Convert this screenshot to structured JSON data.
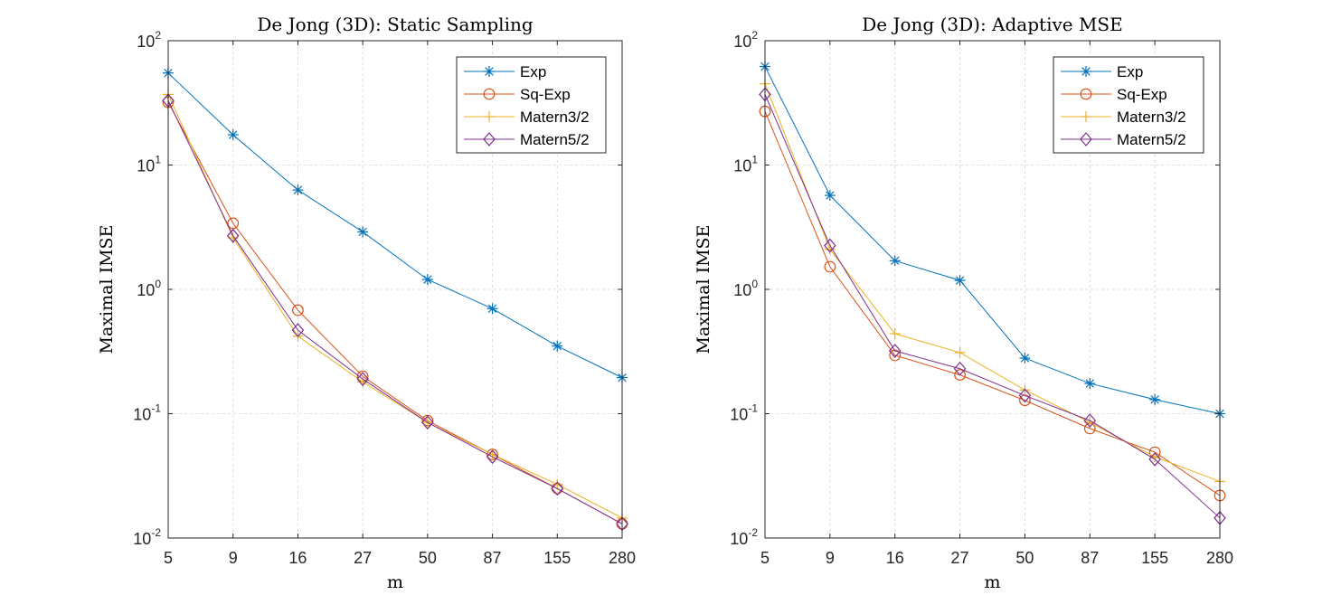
{
  "chart_data": [
    {
      "type": "line",
      "title": "De Jong (3D): Static Sampling",
      "xlabel": "m",
      "ylabel": "Maximal IMSE",
      "yscale": "log",
      "ylim": [
        0.01,
        100
      ],
      "grid": true,
      "legend_position": "top-right",
      "categories": [
        "5",
        "9",
        "16",
        "27",
        "50",
        "87",
        "155",
        "280"
      ],
      "yticks": [
        {
          "base": "10",
          "exp": "2",
          "value": 100
        },
        {
          "base": "10",
          "exp": "1",
          "value": 10
        },
        {
          "base": "10",
          "exp": "0",
          "value": 1
        },
        {
          "base": "10",
          "exp": "-1",
          "value": 0.1
        },
        {
          "base": "10",
          "exp": "-2",
          "value": 0.01
        }
      ],
      "series": [
        {
          "name": "Exp",
          "color": "#0072BD",
          "marker": "asterisk",
          "values": [
            55,
            17.5,
            6.3,
            2.9,
            1.2,
            0.7,
            0.35,
            0.195
          ]
        },
        {
          "name": "Sq-Exp",
          "color": "#D95319",
          "marker": "circle",
          "values": [
            32,
            3.4,
            0.68,
            0.2,
            0.088,
            0.047,
            0.025,
            0.013
          ]
        },
        {
          "name": "Matern3/2",
          "color": "#EDB120",
          "marker": "plus",
          "values": [
            37,
            2.6,
            0.42,
            0.18,
            0.085,
            0.047,
            0.027,
            0.0145
          ]
        },
        {
          "name": "Matern5/2",
          "color": "#7E2F8E",
          "marker": "diamond",
          "values": [
            33,
            2.7,
            0.47,
            0.19,
            0.085,
            0.045,
            0.025,
            0.013
          ]
        }
      ]
    },
    {
      "type": "line",
      "title": "De Jong (3D): Adaptive MSE",
      "xlabel": "m",
      "ylabel": "Maximal IMSE",
      "yscale": "log",
      "ylim": [
        0.01,
        100
      ],
      "grid": true,
      "legend_position": "top-right",
      "categories": [
        "5",
        "9",
        "16",
        "27",
        "50",
        "87",
        "155",
        "280"
      ],
      "yticks": [
        {
          "base": "10",
          "exp": "2",
          "value": 100
        },
        {
          "base": "10",
          "exp": "1",
          "value": 10
        },
        {
          "base": "10",
          "exp": "0",
          "value": 1
        },
        {
          "base": "10",
          "exp": "-1",
          "value": 0.1
        },
        {
          "base": "10",
          "exp": "-2",
          "value": 0.01
        }
      ],
      "series": [
        {
          "name": "Exp",
          "color": "#0072BD",
          "marker": "asterisk",
          "values": [
            62,
            5.7,
            1.7,
            1.18,
            0.28,
            0.175,
            0.13,
            0.1
          ]
        },
        {
          "name": "Sq-Exp",
          "color": "#D95319",
          "marker": "circle",
          "values": [
            27,
            1.52,
            0.295,
            0.205,
            0.128,
            0.076,
            0.049,
            0.022
          ]
        },
        {
          "name": "Matern3/2",
          "color": "#EDB120",
          "marker": "plus",
          "values": [
            45,
            2.1,
            0.44,
            0.31,
            0.155,
            0.085,
            0.045,
            0.0285
          ]
        },
        {
          "name": "Matern5/2",
          "color": "#7E2F8E",
          "marker": "diamond",
          "values": [
            37,
            2.25,
            0.32,
            0.23,
            0.14,
            0.088,
            0.043,
            0.0145
          ]
        }
      ]
    }
  ]
}
